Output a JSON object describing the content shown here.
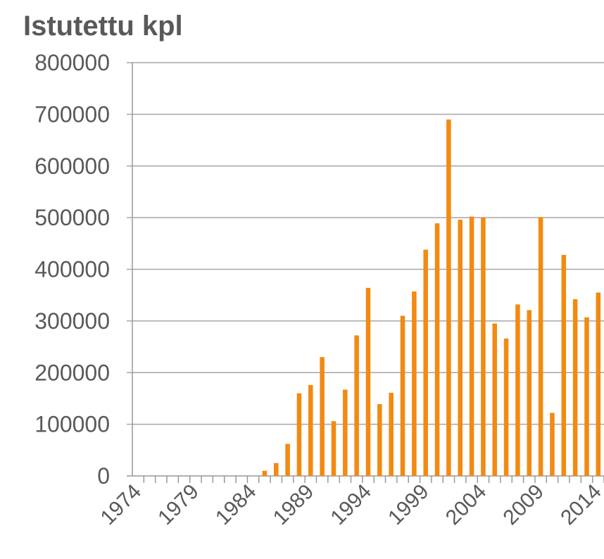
{
  "chart_data": {
    "type": "bar",
    "title": "Istutettu kpl",
    "categories": [
      "1974",
      null,
      null,
      null,
      null,
      "1979",
      null,
      null,
      null,
      null,
      "1984",
      null,
      null,
      null,
      null,
      "1989",
      null,
      null,
      null,
      null,
      "1994",
      null,
      null,
      null,
      null,
      "1999",
      null,
      null,
      null,
      null,
      "2004",
      null,
      null,
      null,
      null,
      "2009",
      null,
      null,
      null,
      null,
      "2014"
    ],
    "values": [
      0,
      0,
      0,
      0,
      0,
      0,
      0,
      0,
      0,
      0,
      0,
      10000,
      25000,
      62000,
      160000,
      176000,
      230000,
      106000,
      167000,
      272000,
      364000,
      139000,
      161000,
      310000,
      357000,
      438000,
      489000,
      690000,
      496000,
      502000,
      500000,
      295000,
      266000,
      332000,
      321000,
      501000,
      122000,
      428000,
      342000,
      307000,
      355000
    ],
    "color": "#f28a12",
    "ylim": [
      0,
      800000
    ],
    "yticks": [
      0,
      100000,
      200000,
      300000,
      400000,
      500000,
      600000,
      700000,
      800000
    ],
    "grid": true
  }
}
